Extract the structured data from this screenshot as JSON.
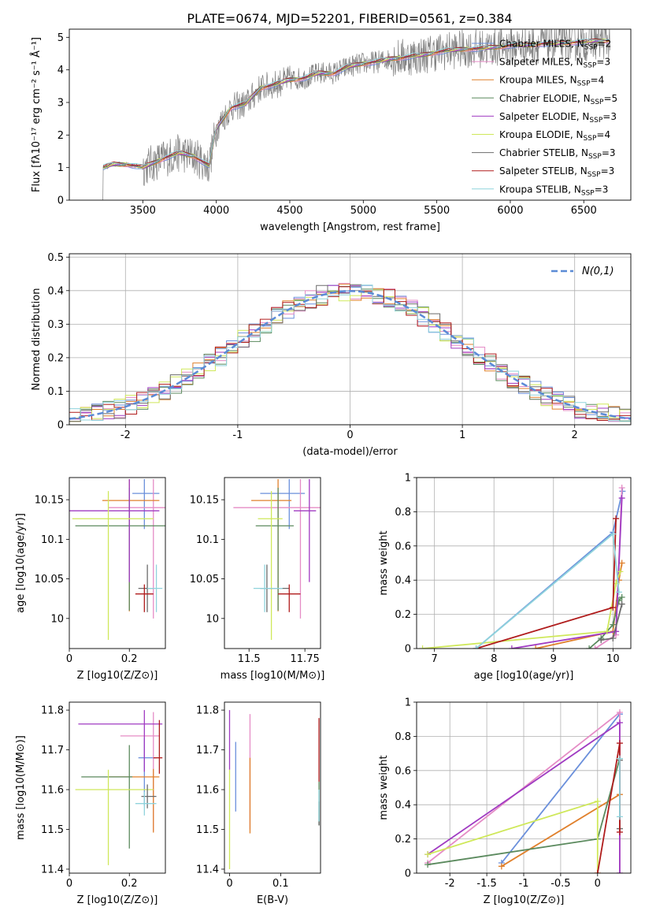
{
  "figure_title": "PLATE=0674, MJD=52201, FIBERID=0561, z=0.384",
  "colors": {
    "Chabrier MILES": "#6a8fdb",
    "Salpeter MILES": "#e58cc6",
    "Kroupa MILES": "#e0802c",
    "Chabrier ELODIE": "#5b8a5e",
    "Salpeter ELODIE": "#a03bc2",
    "Kroupa ELODIE": "#cfe85a",
    "Chabrier STELIB": "#6b6b6b",
    "Salpeter STELIB": "#b01c1c",
    "Kroupa STELIB": "#8fd3dc",
    "normal": "#5b8bd6",
    "grid": "#b0b0b0"
  },
  "chart_data": [
    {
      "id": "spectrum",
      "type": "line",
      "title": "PLATE=0674, MJD=52201, FIBERID=0561, z=0.384",
      "xlabel": "wavelength [Angstrom, rest frame]",
      "ylabel": "Flux [fλ10⁻¹⁷ erg cm⁻² s⁻¹ Å⁻¹]",
      "xlim": [
        3000,
        6820
      ],
      "ylim": [
        0,
        5.25
      ],
      "xticks": [
        3500,
        4000,
        4500,
        5000,
        5500,
        6000,
        6500
      ],
      "yticks": [
        0,
        1,
        2,
        3,
        4,
        5
      ],
      "grid": false,
      "legend_position": "right",
      "continuum": [
        [
          3210,
          0.0
        ],
        [
          3230,
          1.0
        ],
        [
          3300,
          1.1
        ],
        [
          3400,
          1.1
        ],
        [
          3500,
          1.0
        ],
        [
          3550,
          1.1
        ],
        [
          3650,
          1.3
        ],
        [
          3750,
          1.45
        ],
        [
          3850,
          1.35
        ],
        [
          3950,
          1.05
        ],
        [
          4000,
          2.2
        ],
        [
          4100,
          2.85
        ],
        [
          4200,
          2.95
        ],
        [
          4300,
          3.45
        ],
        [
          4400,
          3.55
        ],
        [
          4500,
          3.7
        ],
        [
          4600,
          3.75
        ],
        [
          4700,
          3.9
        ],
        [
          4800,
          3.9
        ],
        [
          4900,
          4.1
        ],
        [
          5000,
          4.2
        ],
        [
          5100,
          4.25
        ],
        [
          5200,
          4.35
        ],
        [
          5300,
          4.4
        ],
        [
          5400,
          4.45
        ],
        [
          5500,
          4.55
        ],
        [
          5600,
          4.6
        ],
        [
          5700,
          4.65
        ],
        [
          5800,
          4.65
        ],
        [
          5900,
          4.7
        ],
        [
          6000,
          4.75
        ],
        [
          6100,
          4.75
        ],
        [
          6200,
          4.8
        ],
        [
          6300,
          4.8
        ],
        [
          6400,
          4.85
        ],
        [
          6500,
          4.85
        ],
        [
          6600,
          4.9
        ],
        [
          6680,
          4.9
        ]
      ],
      "series": [
        {
          "name": "Chabrier MILES, N_SSP=2"
        },
        {
          "name": "Salpeter MILES, N_SSP=3"
        },
        {
          "name": "Kroupa MILES, N_SSP=4"
        },
        {
          "name": "Chabrier ELODIE, N_SSP=5"
        },
        {
          "name": "Salpeter ELODIE, N_SSP=3"
        },
        {
          "name": "Kroupa ELODIE, N_SSP=4"
        },
        {
          "name": "Chabrier STELIB, N_SSP=3"
        },
        {
          "name": "Salpeter STELIB, N_SSP=3"
        },
        {
          "name": "Kroupa STELIB, N_SSP=3"
        }
      ]
    },
    {
      "id": "residuals",
      "type": "bar",
      "xlabel": "(data-model)/error",
      "ylabel": "Normed distribution",
      "xlim": [
        -2.5,
        2.5
      ],
      "ylim": [
        0,
        0.51
      ],
      "xticks": [
        -2,
        -1,
        0,
        1,
        2
      ],
      "yticks": [
        0.0,
        0.1,
        0.2,
        0.3,
        0.4,
        0.5
      ],
      "grid": true,
      "legend_position": "top-right",
      "bin_width": 0.1,
      "normal_label": "N(0,1)"
    },
    {
      "id": "age_vs_Z",
      "type": "scatter",
      "xlabel": "Z [log10(Z/Z⊙)]",
      "ylabel": "age [log10(age/yr)]",
      "xlim": [
        0.0,
        0.32
      ],
      "ylim": [
        9.962,
        10.178
      ],
      "xticks": [
        0.0,
        0.2
      ],
      "yticks": [
        10.0,
        10.05,
        10.1,
        10.15
      ],
      "points": [
        {
          "model": "Chabrier MILES",
          "x": 0.25,
          "y": 10.158,
          "xerr": [
            0.04,
            0.05
          ],
          "yerr": [
            0.045,
            0.018
          ]
        },
        {
          "model": "Salpeter MILES",
          "x": 0.28,
          "y": 10.14,
          "xerr": [
            0.15,
            0.06
          ],
          "yerr": [
            0.14,
            0.036
          ]
        },
        {
          "model": "Kroupa MILES",
          "x": 0.2,
          "y": 10.149,
          "xerr": [
            0.09,
            0.1
          ],
          "yerr": [
            0.14,
            0.027
          ]
        },
        {
          "model": "Chabrier ELODIE",
          "x": 0.2,
          "y": 10.117,
          "xerr": [
            0.18,
            0.12
          ],
          "yerr": [
            0.107,
            0.048
          ]
        },
        {
          "model": "Salpeter ELODIE",
          "x": 0.2,
          "y": 10.136,
          "xerr": [
            0.2,
            0.1
          ],
          "yerr": [
            0.09,
            0.04
          ]
        },
        {
          "model": "Kroupa ELODIE",
          "x": 0.13,
          "y": 10.126,
          "xerr": [
            0.12,
            0.15
          ],
          "yerr": [
            0.153,
            0.035
          ]
        },
        {
          "model": "Chabrier STELIB",
          "x": 0.26,
          "y": 10.038,
          "xerr": [
            0.03,
            0.02
          ],
          "yerr": [
            0.03,
            0.03
          ]
        },
        {
          "model": "Salpeter STELIB",
          "x": 0.25,
          "y": 10.031,
          "xerr": [
            0.03,
            0.03
          ],
          "yerr": [
            0.023,
            0.012
          ]
        },
        {
          "model": "Kroupa STELIB",
          "x": 0.29,
          "y": 10.038,
          "xerr": [
            0.03,
            0.02
          ],
          "yerr": [
            0.03,
            0.03
          ]
        }
      ]
    },
    {
      "id": "age_vs_mass",
      "type": "scatter",
      "xlabel": "mass [log10(M/M⊙)]",
      "ylabel": "",
      "xlim": [
        11.39,
        11.82
      ],
      "ylim": [
        9.962,
        10.178
      ],
      "xticks": [
        11.5,
        11.75
      ],
      "yticks": [
        10.0,
        10.05,
        10.1,
        10.15
      ],
      "points": [
        {
          "model": "Chabrier MILES",
          "x": 11.68,
          "y": 10.158,
          "xerr": [
            0.13,
            0.07
          ],
          "yerr": [
            0.045,
            0.018
          ]
        },
        {
          "model": "Salpeter MILES",
          "x": 11.73,
          "y": 10.14,
          "xerr": [
            0.3,
            0.09
          ],
          "yerr": [
            0.14,
            0.036
          ]
        },
        {
          "model": "Kroupa MILES",
          "x": 11.63,
          "y": 10.149,
          "xerr": [
            0.12,
            0.06
          ],
          "yerr": [
            0.14,
            0.027
          ]
        },
        {
          "model": "Chabrier ELODIE",
          "x": 11.63,
          "y": 10.117,
          "xerr": [
            0.1,
            0.07
          ],
          "yerr": [
            0.107,
            0.048
          ]
        },
        {
          "model": "Salpeter ELODIE",
          "x": 11.77,
          "y": 10.136,
          "xerr": [
            0.07,
            0.03
          ],
          "yerr": [
            0.09,
            0.04
          ]
        },
        {
          "model": "Kroupa ELODIE",
          "x": 11.6,
          "y": 10.126,
          "xerr": [
            0.06,
            0.05
          ],
          "yerr": [
            0.153,
            0.035
          ]
        },
        {
          "model": "Chabrier STELIB",
          "x": 11.58,
          "y": 10.038,
          "xerr": [
            0.03,
            0.1
          ],
          "yerr": [
            0.03,
            0.03
          ]
        },
        {
          "model": "Salpeter STELIB",
          "x": 11.68,
          "y": 10.031,
          "xerr": [
            0.05,
            0.05
          ],
          "yerr": [
            0.023,
            0.012
          ]
        },
        {
          "model": "Kroupa STELIB",
          "x": 11.57,
          "y": 10.038,
          "xerr": [
            0.05,
            0.08
          ],
          "yerr": [
            0.03,
            0.03
          ]
        }
      ]
    },
    {
      "id": "weight_vs_age",
      "type": "line",
      "xlabel": "age [log10(age/yr)]",
      "ylabel": "mass weight",
      "xlim": [
        6.7,
        10.3
      ],
      "ylim": [
        0.0,
        1.0
      ],
      "xticks": [
        7,
        8,
        9,
        10
      ],
      "yticks": [
        0.0,
        0.2,
        0.4,
        0.6,
        0.8,
        1.0
      ],
      "grid": true,
      "series": [
        {
          "model": "Chabrier MILES",
          "points": [
            [
              7.7,
              0.0
            ],
            [
              10.0,
              0.68
            ],
            [
              10.16,
              0.92
            ]
          ]
        },
        {
          "model": "Salpeter MILES",
          "points": [
            [
              9.7,
              0.0
            ],
            [
              10.05,
              0.08
            ],
            [
              10.15,
              0.94
            ]
          ]
        },
        {
          "model": "Kroupa MILES",
          "points": [
            [
              8.7,
              0.0
            ],
            [
              10.0,
              0.1
            ],
            [
              10.1,
              0.4
            ],
            [
              10.15,
              0.5
            ]
          ]
        },
        {
          "model": "Chabrier ELODIE",
          "points": [
            [
              9.6,
              0.0
            ],
            [
              9.8,
              0.06
            ],
            [
              10.0,
              0.14
            ],
            [
              10.1,
              0.28
            ],
            [
              10.15,
              0.3
            ]
          ]
        },
        {
          "model": "Salpeter ELODIE",
          "points": [
            [
              8.3,
              0.0
            ],
            [
              10.05,
              0.1
            ],
            [
              10.15,
              0.88
            ]
          ]
        },
        {
          "model": "Kroupa ELODIE",
          "points": [
            [
              6.8,
              0.0
            ],
            [
              9.9,
              0.1
            ],
            [
              10.05,
              0.38
            ],
            [
              10.12,
              0.45
            ]
          ]
        },
        {
          "model": "Chabrier STELIB",
          "points": [
            [
              9.8,
              0.05
            ],
            [
              10.0,
              0.06
            ],
            [
              10.15,
              0.26
            ]
          ]
        },
        {
          "model": "Salpeter STELIB",
          "points": [
            [
              7.7,
              0.0
            ],
            [
              10.0,
              0.24
            ],
            [
              10.05,
              0.76
            ]
          ]
        },
        {
          "model": "Kroupa STELIB",
          "points": [
            [
              7.7,
              0.0
            ],
            [
              10.0,
              0.67
            ],
            [
              10.1,
              0.33
            ]
          ]
        }
      ]
    },
    {
      "id": "mass_vs_Z",
      "type": "scatter",
      "xlabel": "Z [log10(Z/Z⊙)]",
      "ylabel": "mass [log10(M/M⊙)]",
      "xlim": [
        0.0,
        0.32
      ],
      "ylim": [
        11.39,
        11.82
      ],
      "xticks": [
        0.0,
        0.2
      ],
      "yticks": [
        11.4,
        11.5,
        11.6,
        11.7,
        11.8
      ],
      "points": [
        {
          "model": "Chabrier MILES",
          "x": 0.25,
          "y": 11.68,
          "xerr": [
            0.02,
            0.04
          ],
          "yerr": [
            0.12,
            0.05
          ]
        },
        {
          "model": "Salpeter MILES",
          "x": 0.28,
          "y": 11.735,
          "xerr": [
            0.11,
            0.02
          ],
          "yerr": [
            0.24,
            0.06
          ]
        },
        {
          "model": "Kroupa MILES",
          "x": 0.28,
          "y": 11.632,
          "xerr": [
            0.15,
            0.02
          ],
          "yerr": [
            0.14,
            0.02
          ]
        },
        {
          "model": "Chabrier ELODIE",
          "x": 0.2,
          "y": 11.632,
          "xerr": [
            0.16,
            0.01
          ],
          "yerr": [
            0.18,
            0.08
          ]
        },
        {
          "model": "Salpeter ELODIE",
          "x": 0.25,
          "y": 11.765,
          "xerr": [
            0.22,
            0.06
          ],
          "yerr": [
            0.12,
            0.035
          ]
        },
        {
          "model": "Kroupa ELODIE",
          "x": 0.13,
          "y": 11.6,
          "xerr": [
            0.11,
            0.15
          ],
          "yerr": [
            0.19,
            0.05
          ]
        },
        {
          "model": "Chabrier STELIB",
          "x": 0.26,
          "y": 11.583,
          "xerr": [
            0.02,
            0.03
          ],
          "yerr": [
            0.03,
            0.03
          ]
        },
        {
          "model": "Salpeter STELIB",
          "x": 0.3,
          "y": 11.68,
          "xerr": [
            0.02,
            0.01
          ],
          "yerr": [
            0.04,
            0.095
          ]
        },
        {
          "model": "Kroupa STELIB",
          "x": 0.25,
          "y": 11.565,
          "xerr": [
            0.03,
            0.04
          ],
          "yerr": [
            0.03,
            0.03
          ]
        }
      ]
    },
    {
      "id": "mass_vs_EBV",
      "type": "scatter",
      "xlabel": "E(B-V)",
      "ylabel": "",
      "xlim": [
        -0.01,
        0.178
      ],
      "ylim": [
        11.39,
        11.82
      ],
      "xticks": [
        0.0,
        0.1
      ],
      "yticks": [
        11.4,
        11.5,
        11.6,
        11.7,
        11.8
      ],
      "points": [
        {
          "model": "Chabrier MILES",
          "x": 0.012,
          "y": 11.6,
          "yerr": [
            0.055,
            0.12
          ]
        },
        {
          "model": "Salpeter MILES",
          "x": 0.04,
          "y": 11.7,
          "yerr": [
            0.2,
            0.09
          ]
        },
        {
          "model": "Kroupa MILES",
          "x": 0.04,
          "y": 11.58,
          "yerr": [
            0.09,
            0.1
          ]
        },
        {
          "model": "Chabrier ELODIE",
          "x": 0.175,
          "y": 11.56,
          "yerr": [
            0.05,
            0.06
          ]
        },
        {
          "model": "Salpeter ELODIE",
          "x": 0.0,
          "y": 11.7,
          "yerr": [
            0.05,
            0.1
          ]
        },
        {
          "model": "Kroupa ELODIE",
          "x": 0.0,
          "y": 11.5,
          "yerr": [
            0.1,
            0.15
          ]
        },
        {
          "model": "Chabrier STELIB",
          "x": 0.175,
          "y": 11.54,
          "yerr": [
            0.03,
            0.03
          ]
        },
        {
          "model": "Salpeter STELIB",
          "x": 0.175,
          "y": 11.7,
          "yerr": [
            0.08,
            0.08
          ]
        },
        {
          "model": "Kroupa STELIB",
          "x": 0.175,
          "y": 11.56,
          "yerr": [
            0.04,
            0.04
          ]
        }
      ]
    },
    {
      "id": "weight_vs_Z",
      "type": "line",
      "xlabel": "Z [log10(Z/Z⊙)]",
      "ylabel": "mass weight",
      "xlim": [
        -2.45,
        0.45
      ],
      "ylim": [
        0.0,
        1.0
      ],
      "xticks": [
        -2.0,
        -1.5,
        -1.0,
        -0.5,
        0.0
      ],
      "yticks": [
        0.0,
        0.2,
        0.4,
        0.6,
        0.8,
        1.0
      ],
      "grid": true,
      "series": [
        {
          "model": "Chabrier MILES",
          "points": [
            [
              -1.3,
              0.06
            ],
            [
              0.3,
              0.93
            ]
          ]
        },
        {
          "model": "Salpeter MILES",
          "points": [
            [
              -2.3,
              0.06
            ],
            [
              0.3,
              0.94
            ],
            [
              0.3,
              0.0
            ]
          ]
        },
        {
          "model": "Kroupa MILES",
          "points": [
            [
              -1.3,
              0.04
            ],
            [
              0.3,
              0.46
            ]
          ]
        },
        {
          "model": "Chabrier ELODIE",
          "points": [
            [
              -2.3,
              0.05
            ],
            [
              0.0,
              0.2
            ],
            [
              0.3,
              0.67
            ]
          ]
        },
        {
          "model": "Salpeter ELODIE",
          "points": [
            [
              -2.3,
              0.11
            ],
            [
              0.3,
              0.88
            ],
            [
              0.3,
              0.0
            ]
          ]
        },
        {
          "model": "Kroupa ELODIE",
          "points": [
            [
              -2.3,
              0.11
            ],
            [
              0.0,
              0.42
            ],
            [
              0.0,
              0.0
            ]
          ]
        },
        {
          "model": "Chabrier STELIB",
          "points": [
            [
              0.3,
              0.66
            ],
            [
              0.3,
              0.26
            ]
          ]
        },
        {
          "model": "Salpeter STELIB",
          "points": [
            [
              0.0,
              0.0
            ],
            [
              0.3,
              0.76
            ],
            [
              0.3,
              0.24
            ]
          ]
        },
        {
          "model": "Kroupa STELIB",
          "points": [
            [
              0.3,
              0.67
            ],
            [
              0.3,
              0.33
            ]
          ]
        }
      ]
    }
  ]
}
